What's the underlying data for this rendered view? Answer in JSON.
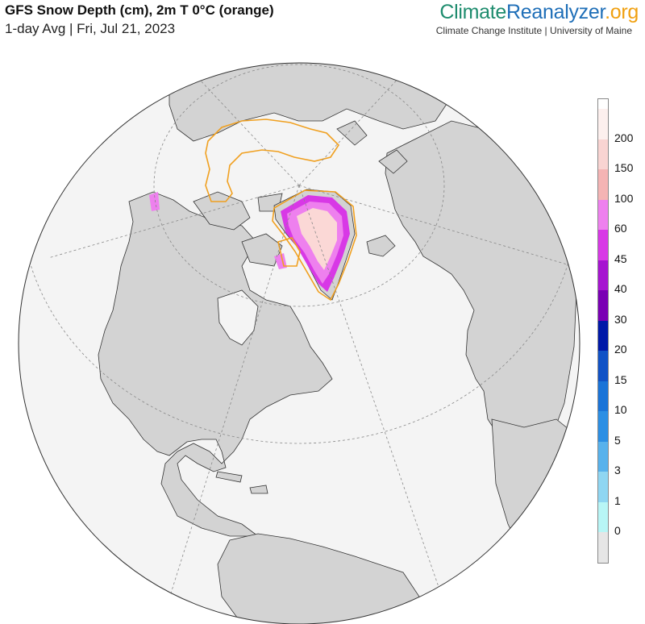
{
  "header": {
    "title": "GFS Snow Depth (cm), 2m T 0°C (orange)",
    "subtitle": "1-day Avg | Fri, Jul 21, 2023"
  },
  "brand": {
    "part1": "Climate",
    "part2": "Reanalyzer",
    "part3": ".org",
    "affiliation": "Climate Change Institute | University of Maine"
  },
  "colorbar": {
    "labels": [
      "200",
      "150",
      "100",
      "60",
      "45",
      "40",
      "30",
      "20",
      "15",
      "10",
      "5",
      "3",
      "1",
      "0"
    ],
    "colors": [
      "#fdf0ee",
      "#f9d4d2",
      "#f4b4b4",
      "#ee80ee",
      "#d838e6",
      "#a614d0",
      "#7a00b4",
      "#0018a8",
      "#1052c6",
      "#1a74d8",
      "#2c8fe4",
      "#58b2ec",
      "#8fd6f2",
      "#b8f6f6",
      "#e6e6e6"
    ]
  },
  "map_colors": {
    "ocean": "#f4f4f4",
    "land": "#d3d3d3",
    "snow_high": "#fbd8d6",
    "snow_mid": "#ee80ee",
    "snow_low": "#d838e6",
    "freezing_line": "#f0a020",
    "border": "#333333"
  }
}
